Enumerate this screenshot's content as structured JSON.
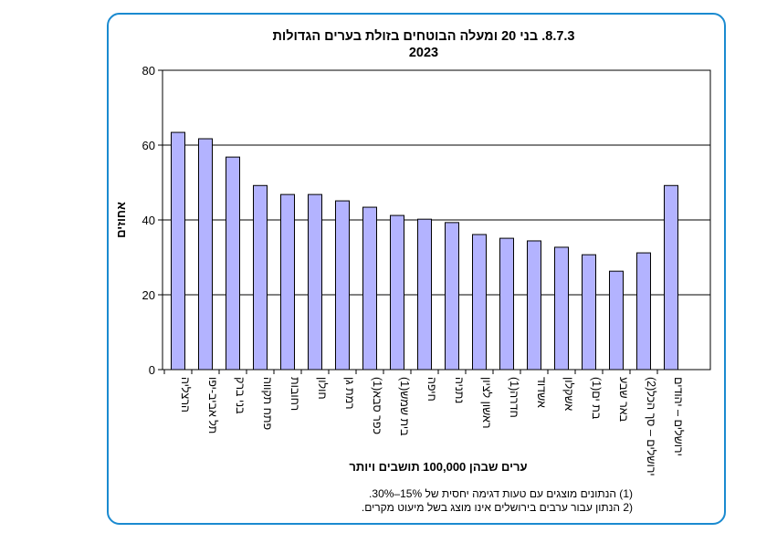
{
  "chart_data": {
    "type": "bar",
    "title": "8.7.3. בני 20 ומעלה הבוטחים בזולת בערים הגדולות",
    "subtitle": "2023",
    "xlabel": "ערים שבהן 100,000 תושבים ויותר",
    "ylabel": "אחוזים",
    "ylim": [
      0,
      80
    ],
    "yticks": [
      0,
      20,
      40,
      60,
      80
    ],
    "grid": true,
    "bar_color": "#b3b3ff",
    "categories": [
      "הרצליה",
      "תל אביב-יפו",
      "בני ברק",
      "פתח תקווה",
      "רחובות",
      "חולון",
      "רמת גן",
      "כפר סבא(1)",
      "בית שמש(1)",
      "חיפה",
      "נתניה",
      "ראשון לציון",
      "חדרה(1)",
      "אשדוד",
      "אשקלון",
      "בת ים(1)",
      "באר שבע",
      "ירושלים – סך הכל(2)",
      "ירושלים – יהודים"
    ],
    "values": [
      63.4,
      61.7,
      56.8,
      49.2,
      46.8,
      46.8,
      45.1,
      43.4,
      41.2,
      40.2,
      39.3,
      36.1,
      35.1,
      34.4,
      32.7,
      30.7,
      26.3,
      31.2,
      49.2
    ],
    "notes": [
      "(1) הנתונים מוצגים עם טעות דגימה יחסית של 15%–30%.",
      "(2 הנתון עבור ערבים בירושלים אינו מוצג בשל מיעוט מקרים."
    ]
  }
}
